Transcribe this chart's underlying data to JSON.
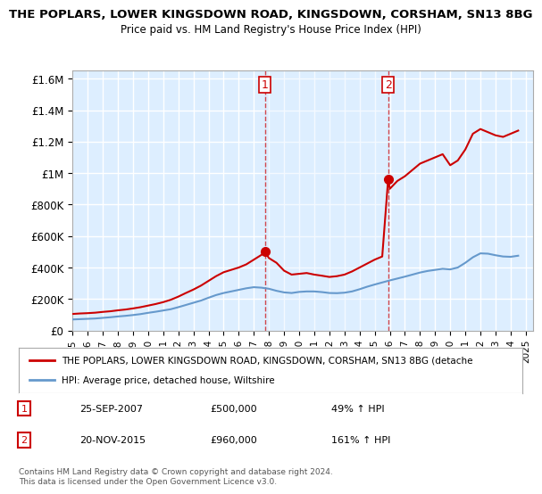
{
  "title_line1": "THE POPLARS, LOWER KINGSDOWN ROAD, KINGSDOWN, CORSHAM, SN13 8BG",
  "title_line2": "Price paid vs. HM Land Registry's House Price Index (HPI)",
  "ylabel_ticks": [
    "£0",
    "£200K",
    "£400K",
    "£600K",
    "£800K",
    "£1M",
    "£1.2M",
    "£1.4M",
    "£1.6M"
  ],
  "ylabel_values": [
    0,
    200000,
    400000,
    600000,
    800000,
    1000000,
    1200000,
    1400000,
    1600000
  ],
  "ylim": [
    0,
    1650000
  ],
  "xlim_start": 1995,
  "xlim_end": 2025.5,
  "sale1_x": 2007.73,
  "sale1_y": 500000,
  "sale1_label": "1",
  "sale1_date": "25-SEP-2007",
  "sale1_price": "£500,000",
  "sale1_hpi": "49% ↑ HPI",
  "sale2_x": 2015.89,
  "sale2_y": 960000,
  "sale2_label": "2",
  "sale2_date": "20-NOV-2015",
  "sale2_price": "£960,000",
  "sale2_hpi": "161% ↑ HPI",
  "line_color_property": "#cc0000",
  "line_color_hpi": "#6699cc",
  "background_plot": "#ddeeff",
  "background_fig": "#ffffff",
  "grid_color": "#ffffff",
  "legend_label_property": "THE POPLARS, LOWER KINGSDOWN ROAD, KINGSDOWN, CORSHAM, SN13 8BG (detache",
  "legend_label_hpi": "HPI: Average price, detached house, Wiltshire",
  "footnote": "Contains HM Land Registry data © Crown copyright and database right 2024.\nThis data is licensed under the Open Government Licence v3.0.",
  "property_years": [
    1995,
    1995.5,
    1996,
    1996.5,
    1997,
    1997.5,
    1998,
    1998.5,
    1999,
    1999.5,
    2000,
    2000.5,
    2001,
    2001.5,
    2002,
    2002.5,
    2003,
    2003.5,
    2004,
    2004.5,
    2005,
    2005.5,
    2006,
    2006.5,
    2007,
    2007.5,
    2007.73,
    2008,
    2008.5,
    2009,
    2009.5,
    2010,
    2010.5,
    2011,
    2011.5,
    2012,
    2012.5,
    2013,
    2013.5,
    2014,
    2014.5,
    2015,
    2015.5,
    2015.89,
    2016,
    2016.5,
    2017,
    2017.5,
    2018,
    2018.5,
    2019,
    2019.5,
    2020,
    2020.5,
    2021,
    2021.5,
    2022,
    2022.5,
    2023,
    2023.5,
    2024,
    2024.5
  ],
  "property_values": [
    105000,
    108000,
    110000,
    113000,
    118000,
    122000,
    128000,
    133000,
    140000,
    148000,
    158000,
    168000,
    180000,
    195000,
    215000,
    238000,
    260000,
    285000,
    315000,
    345000,
    370000,
    385000,
    400000,
    420000,
    450000,
    480000,
    500000,
    460000,
    430000,
    380000,
    355000,
    360000,
    365000,
    355000,
    348000,
    340000,
    345000,
    355000,
    375000,
    400000,
    425000,
    450000,
    470000,
    960000,
    900000,
    950000,
    980000,
    1020000,
    1060000,
    1080000,
    1100000,
    1120000,
    1050000,
    1080000,
    1150000,
    1250000,
    1280000,
    1260000,
    1240000,
    1230000,
    1250000,
    1270000
  ],
  "hpi_years": [
    1995,
    1995.5,
    1996,
    1996.5,
    1997,
    1997.5,
    1998,
    1998.5,
    1999,
    1999.5,
    2000,
    2000.5,
    2001,
    2001.5,
    2002,
    2002.5,
    2003,
    2003.5,
    2004,
    2004.5,
    2005,
    2005.5,
    2006,
    2006.5,
    2007,
    2007.5,
    2008,
    2008.5,
    2009,
    2009.5,
    2010,
    2010.5,
    2011,
    2011.5,
    2012,
    2012.5,
    2013,
    2013.5,
    2014,
    2014.5,
    2015,
    2015.5,
    2016,
    2016.5,
    2017,
    2017.5,
    2018,
    2018.5,
    2019,
    2019.5,
    2020,
    2020.5,
    2021,
    2021.5,
    2022,
    2022.5,
    2023,
    2023.5,
    2024,
    2024.5
  ],
  "hpi_values": [
    70000,
    72000,
    74000,
    76000,
    80000,
    84000,
    89000,
    93000,
    98000,
    104000,
    112000,
    119000,
    127000,
    135000,
    148000,
    162000,
    176000,
    190000,
    208000,
    225000,
    238000,
    248000,
    258000,
    268000,
    275000,
    272000,
    265000,
    252000,
    242000,
    238000,
    245000,
    248000,
    248000,
    244000,
    238000,
    237000,
    240000,
    248000,
    262000,
    278000,
    292000,
    305000,
    318000,
    330000,
    342000,
    355000,
    368000,
    378000,
    385000,
    392000,
    388000,
    400000,
    430000,
    465000,
    490000,
    488000,
    478000,
    470000,
    468000,
    475000
  ]
}
